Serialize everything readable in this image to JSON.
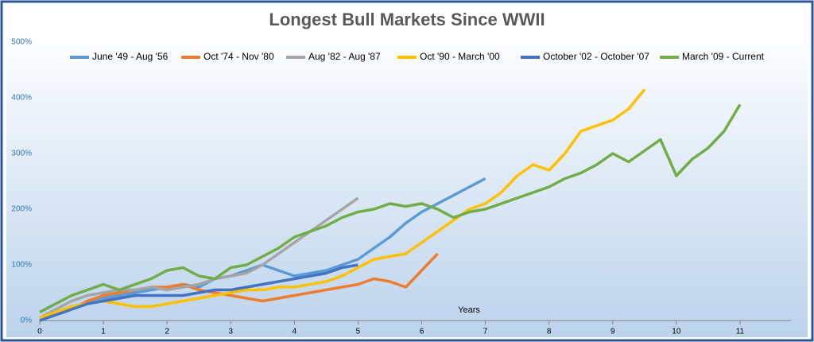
{
  "chart_data": {
    "type": "line",
    "title": "Longest Bull Markets Since WWII",
    "x_label": "Years",
    "x": [
      0,
      0.25,
      0.5,
      0.75,
      1,
      1.25,
      1.5,
      1.75,
      2,
      2.25,
      2.5,
      2.75,
      3,
      3.25,
      3.5,
      3.75,
      4,
      4.25,
      4.5,
      4.75,
      5,
      5.25,
      5.5,
      5.75,
      6,
      6.25,
      6.5,
      6.75,
      7,
      7.25,
      7.5,
      7.75,
      8,
      8.25,
      8.5,
      8.75,
      9,
      9.25,
      9.5,
      9.75,
      10,
      10.25,
      10.5,
      10.75,
      11
    ],
    "xlim": [
      0,
      11.8
    ],
    "xticks": [
      0,
      1,
      2,
      3,
      4,
      5,
      6,
      7,
      8,
      9,
      10,
      11
    ],
    "ylim": [
      0,
      500
    ],
    "yticks": [
      {
        "value": 0,
        "label": "0%"
      },
      {
        "value": 100,
        "label": "100%"
      },
      {
        "value": 200,
        "label": "200%"
      },
      {
        "value": 300,
        "label": "300%"
      },
      {
        "value": 400,
        "label": "400%"
      },
      {
        "value": 500,
        "label": "500%"
      }
    ],
    "series": [
      {
        "name": "June '49 - Aug '56",
        "color": "#5b9bd5",
        "values": [
          5,
          15,
          25,
          30,
          40,
          45,
          50,
          55,
          60,
          65,
          60,
          75,
          80,
          90,
          100,
          90,
          80,
          85,
          90,
          100,
          110,
          130,
          150,
          175,
          195,
          210,
          225,
          240,
          255,
          null,
          null,
          null,
          null,
          null,
          null,
          null,
          null,
          null,
          null,
          null,
          null,
          null,
          null,
          null,
          null
        ]
      },
      {
        "name": "Oct '74 - Nov '80",
        "color": "#ed7d31",
        "values": [
          0,
          10,
          20,
          35,
          45,
          50,
          55,
          60,
          60,
          65,
          55,
          50,
          45,
          40,
          35,
          40,
          45,
          50,
          55,
          60,
          65,
          75,
          70,
          60,
          90,
          120,
          null,
          null,
          null,
          null,
          null,
          null,
          null,
          null,
          null,
          null,
          null,
          null,
          null,
          null,
          null,
          null,
          null,
          null,
          null
        ]
      },
      {
        "name": "Aug '82 - Aug '87",
        "color": "#a5a5a5",
        "values": [
          5,
          20,
          35,
          45,
          50,
          55,
          55,
          60,
          55,
          60,
          65,
          75,
          80,
          85,
          100,
          120,
          140,
          160,
          180,
          200,
          220,
          null,
          null,
          null,
          null,
          null,
          null,
          null,
          null,
          null,
          null,
          null,
          null,
          null,
          null,
          null,
          null,
          null,
          null,
          null,
          null,
          null,
          null,
          null,
          null
        ]
      },
      {
        "name": "Oct '90 - March '00",
        "color": "#ffc000",
        "values": [
          5,
          15,
          25,
          30,
          35,
          30,
          25,
          25,
          30,
          35,
          40,
          45,
          50,
          55,
          55,
          60,
          60,
          65,
          70,
          80,
          95,
          110,
          115,
          120,
          140,
          160,
          180,
          200,
          210,
          230,
          260,
          280,
          270,
          300,
          340,
          350,
          360,
          380,
          415,
          null,
          null,
          null,
          null,
          null,
          null
        ]
      },
      {
        "name": "October '02 - October '07",
        "color": "#4472c4",
        "values": [
          0,
          10,
          20,
          30,
          35,
          40,
          45,
          45,
          45,
          45,
          50,
          55,
          55,
          60,
          65,
          70,
          75,
          80,
          85,
          95,
          100,
          null,
          null,
          null,
          null,
          null,
          null,
          null,
          null,
          null,
          null,
          null,
          null,
          null,
          null,
          null,
          null,
          null,
          null,
          null,
          null,
          null,
          null,
          null,
          null
        ]
      },
      {
        "name": "March '09 - Current",
        "color": "#70ad47",
        "values": [
          15,
          30,
          45,
          55,
          65,
          55,
          65,
          75,
          90,
          95,
          80,
          75,
          95,
          100,
          115,
          130,
          150,
          160,
          170,
          185,
          195,
          200,
          210,
          205,
          210,
          200,
          185,
          195,
          200,
          210,
          220,
          230,
          240,
          255,
          265,
          280,
          300,
          285,
          305,
          325,
          260,
          290,
          310,
          340,
          388
        ]
      }
    ]
  }
}
